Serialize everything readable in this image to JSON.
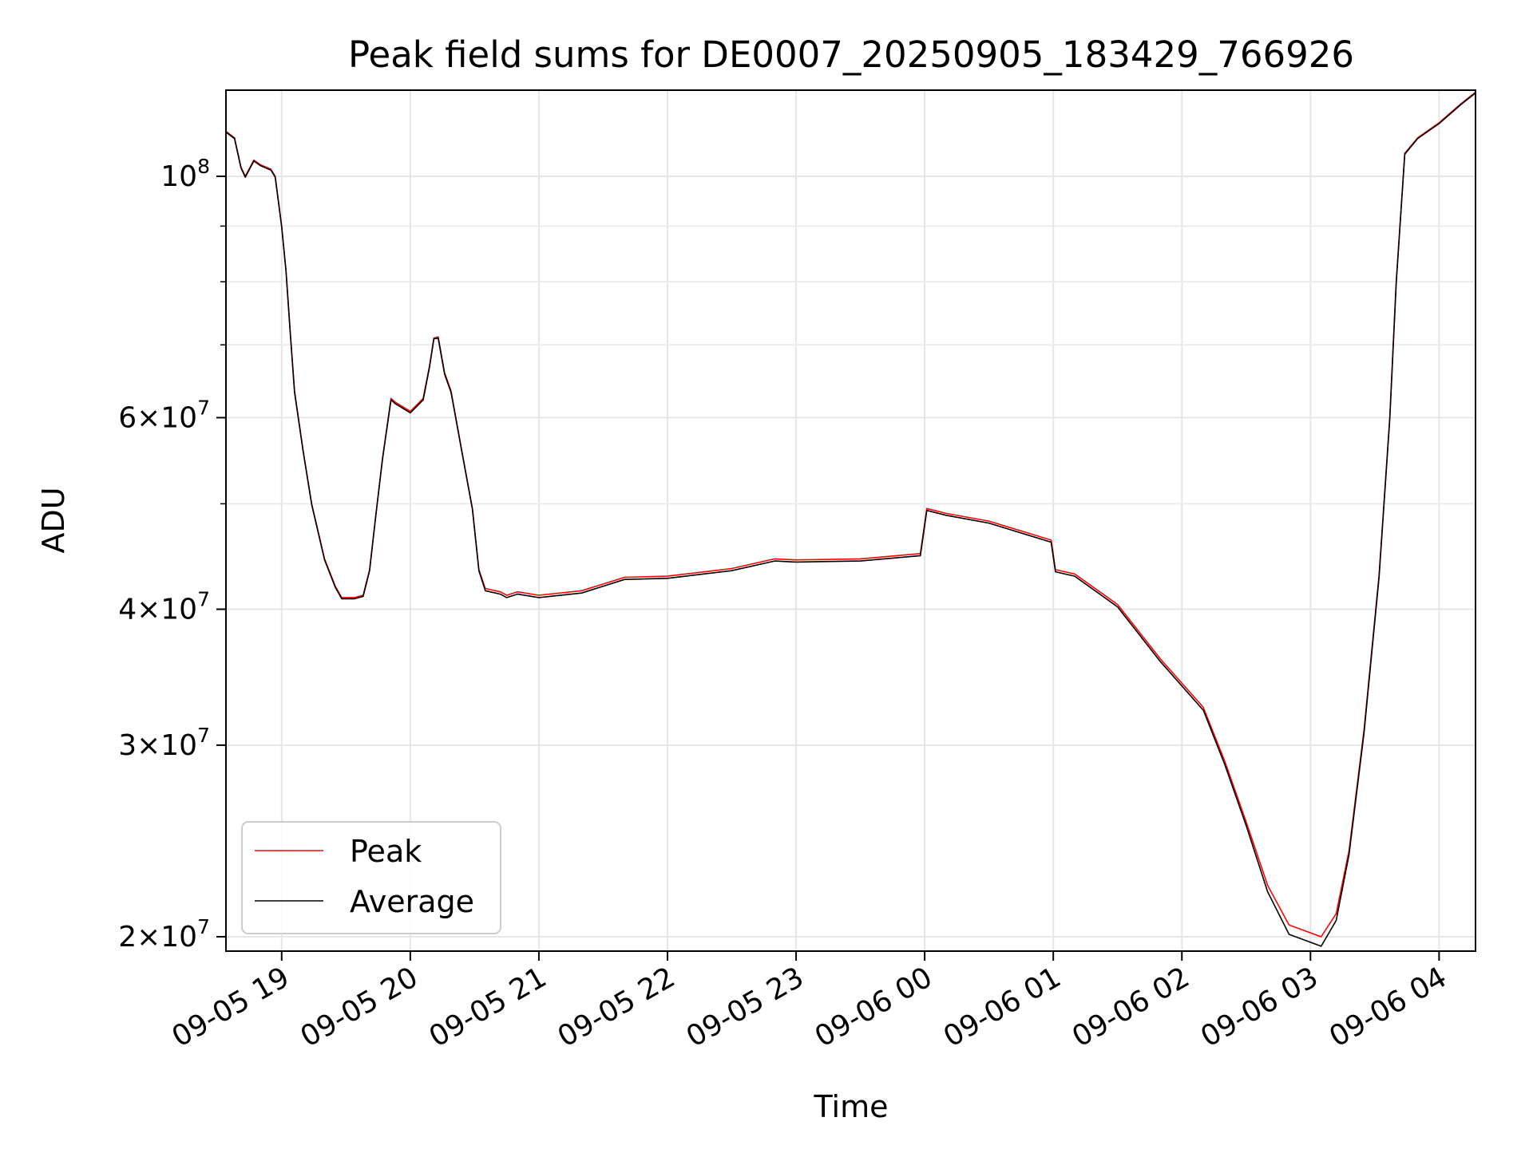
{
  "chart_data": {
    "type": "line",
    "title": "Peak field sums for DE0007_20250905_183429_766926",
    "xlabel": "Time",
    "ylabel": "ADU",
    "y_scale": "log",
    "ylim": [
      19400000,
      120000000
    ],
    "xlim": [
      "2025-09-05 18:34",
      "2025-09-06 04:17"
    ],
    "grid": true,
    "legend_position": "lower-left",
    "x_ticks": [
      {
        "t": "2025-09-05 19:00",
        "label": "09-05 19"
      },
      {
        "t": "2025-09-05 20:00",
        "label": "09-05 20"
      },
      {
        "t": "2025-09-05 21:00",
        "label": "09-05 21"
      },
      {
        "t": "2025-09-05 22:00",
        "label": "09-05 22"
      },
      {
        "t": "2025-09-05 23:00",
        "label": "09-05 23"
      },
      {
        "t": "2025-09-06 00:00",
        "label": "09-06 00"
      },
      {
        "t": "2025-09-06 01:00",
        "label": "09-06 01"
      },
      {
        "t": "2025-09-06 02:00",
        "label": "09-06 02"
      },
      {
        "t": "2025-09-06 03:00",
        "label": "09-06 03"
      },
      {
        "t": "2025-09-06 04:00",
        "label": "09-06 04"
      }
    ],
    "y_ticks": [
      {
        "value": 20000000,
        "mant": "2×10",
        "exp": "7"
      },
      {
        "value": 30000000,
        "mant": "3×10",
        "exp": "7"
      },
      {
        "value": 40000000,
        "mant": "4×10",
        "exp": "7"
      },
      {
        "value": 60000000,
        "mant": "6×10",
        "exp": "7"
      },
      {
        "value": 100000000,
        "mant": "10",
        "exp": "8"
      }
    ],
    "y_minor_ticks": [
      50000000,
      70000000,
      80000000,
      90000000
    ],
    "series": [
      {
        "name": "Peak",
        "color": "#ff0000",
        "points": [
          [
            "2025-09-05 18:34",
            110000000
          ],
          [
            "2025-09-05 18:38",
            108500000
          ],
          [
            "2025-09-05 18:41",
            102000000
          ],
          [
            "2025-09-05 18:43",
            100000000
          ],
          [
            "2025-09-05 18:47",
            103500000
          ],
          [
            "2025-09-05 18:50",
            102500000
          ],
          [
            "2025-09-05 18:55",
            101500000
          ],
          [
            "2025-09-05 18:57",
            100000000
          ],
          [
            "2025-09-05 19:00",
            90000000
          ],
          [
            "2025-09-05 19:02",
            82000000
          ],
          [
            "2025-09-05 19:04",
            72000000
          ],
          [
            "2025-09-05 19:06",
            63500000
          ],
          [
            "2025-09-05 19:10",
            56000000
          ],
          [
            "2025-09-05 19:14",
            50000000
          ],
          [
            "2025-09-05 19:20",
            44500000
          ],
          [
            "2025-09-05 19:25",
            42000000
          ],
          [
            "2025-09-05 19:28",
            41000000
          ],
          [
            "2025-09-05 19:34",
            41000000
          ],
          [
            "2025-09-05 19:38",
            41200000
          ],
          [
            "2025-09-05 19:41",
            43500000
          ],
          [
            "2025-09-05 19:44",
            49000000
          ],
          [
            "2025-09-05 19:47",
            55000000
          ],
          [
            "2025-09-05 19:51",
            62500000
          ],
          [
            "2025-09-05 19:53",
            62000000
          ],
          [
            "2025-09-05 20:00",
            60800000
          ],
          [
            "2025-09-05 20:06",
            62500000
          ],
          [
            "2025-09-05 20:09",
            67000000
          ],
          [
            "2025-09-05 20:11",
            71000000
          ],
          [
            "2025-09-05 20:13",
            71200000
          ],
          [
            "2025-09-05 20:16",
            66000000
          ],
          [
            "2025-09-05 20:19",
            63500000
          ],
          [
            "2025-09-05 20:24",
            56000000
          ],
          [
            "2025-09-05 20:29",
            49500000
          ],
          [
            "2025-09-05 20:32",
            43500000
          ],
          [
            "2025-09-05 20:35",
            41800000
          ],
          [
            "2025-09-05 20:42",
            41500000
          ],
          [
            "2025-09-05 20:45",
            41200000
          ],
          [
            "2025-09-05 20:50",
            41500000
          ],
          [
            "2025-09-05 21:00",
            41200000
          ],
          [
            "2025-09-05 21:20",
            41600000
          ],
          [
            "2025-09-05 21:40",
            42800000
          ],
          [
            "2025-09-05 22:00",
            42900000
          ],
          [
            "2025-09-05 22:30",
            43600000
          ],
          [
            "2025-09-05 22:50",
            44500000
          ],
          [
            "2025-09-05 23:00",
            44400000
          ],
          [
            "2025-09-05 23:30",
            44500000
          ],
          [
            "2025-09-05 23:58",
            45000000
          ],
          [
            "2025-09-06 00:01",
            49500000
          ],
          [
            "2025-09-06 00:10",
            49000000
          ],
          [
            "2025-09-06 00:30",
            48200000
          ],
          [
            "2025-09-06 00:59",
            46300000
          ],
          [
            "2025-09-06 01:01",
            43500000
          ],
          [
            "2025-09-06 01:10",
            43100000
          ],
          [
            "2025-09-06 01:30",
            40400000
          ],
          [
            "2025-09-06 01:50",
            36000000
          ],
          [
            "2025-09-06 02:10",
            32500000
          ],
          [
            "2025-09-06 02:20",
            29000000
          ],
          [
            "2025-09-06 02:30",
            25500000
          ],
          [
            "2025-09-06 02:40",
            22300000
          ],
          [
            "2025-09-06 02:50",
            20500000
          ],
          [
            "2025-09-06 03:05",
            20000000
          ],
          [
            "2025-09-06 03:12",
            21000000
          ],
          [
            "2025-09-06 03:18",
            24000000
          ],
          [
            "2025-09-06 03:25",
            31000000
          ],
          [
            "2025-09-06 03:32",
            43000000
          ],
          [
            "2025-09-06 03:37",
            60000000
          ],
          [
            "2025-09-06 03:40",
            80000000
          ],
          [
            "2025-09-06 03:44",
            105000000
          ],
          [
            "2025-09-06 03:50",
            108500000
          ],
          [
            "2025-09-06 04:00",
            112000000
          ],
          [
            "2025-09-06 04:10",
            116500000
          ],
          [
            "2025-09-06 04:17",
            119500000
          ]
        ]
      },
      {
        "name": "Average",
        "color": "#000000",
        "points": [
          [
            "2025-09-05 18:34",
            109800000
          ],
          [
            "2025-09-05 18:38",
            108300000
          ],
          [
            "2025-09-05 18:41",
            101800000
          ],
          [
            "2025-09-05 18:43",
            99800000
          ],
          [
            "2025-09-05 18:47",
            103300000
          ],
          [
            "2025-09-05 18:50",
            102300000
          ],
          [
            "2025-09-05 18:55",
            101300000
          ],
          [
            "2025-09-05 18:57",
            99800000
          ],
          [
            "2025-09-05 19:00",
            89800000
          ],
          [
            "2025-09-05 19:02",
            81800000
          ],
          [
            "2025-09-05 19:04",
            71800000
          ],
          [
            "2025-09-05 19:06",
            63300000
          ],
          [
            "2025-09-05 19:10",
            55900000
          ],
          [
            "2025-09-05 19:14",
            49900000
          ],
          [
            "2025-09-05 19:20",
            44400000
          ],
          [
            "2025-09-05 19:25",
            41900000
          ],
          [
            "2025-09-05 19:28",
            40900000
          ],
          [
            "2025-09-05 19:34",
            40900000
          ],
          [
            "2025-09-05 19:38",
            41100000
          ],
          [
            "2025-09-05 19:41",
            43400000
          ],
          [
            "2025-09-05 19:44",
            48900000
          ],
          [
            "2025-09-05 19:47",
            54900000
          ],
          [
            "2025-09-05 19:51",
            62300000
          ],
          [
            "2025-09-05 19:53",
            61800000
          ],
          [
            "2025-09-05 20:00",
            60600000
          ],
          [
            "2025-09-05 20:06",
            62300000
          ],
          [
            "2025-09-05 20:09",
            66800000
          ],
          [
            "2025-09-05 20:11",
            70900000
          ],
          [
            "2025-09-05 20:13",
            71000000
          ],
          [
            "2025-09-05 20:16",
            65800000
          ],
          [
            "2025-09-05 20:19",
            63300000
          ],
          [
            "2025-09-05 20:24",
            55900000
          ],
          [
            "2025-09-05 20:29",
            49400000
          ],
          [
            "2025-09-05 20:32",
            43400000
          ],
          [
            "2025-09-05 20:35",
            41600000
          ],
          [
            "2025-09-05 20:42",
            41300000
          ],
          [
            "2025-09-05 20:45",
            41000000
          ],
          [
            "2025-09-05 20:50",
            41300000
          ],
          [
            "2025-09-05 21:00",
            41000000
          ],
          [
            "2025-09-05 21:20",
            41400000
          ],
          [
            "2025-09-05 21:40",
            42600000
          ],
          [
            "2025-09-05 22:00",
            42700000
          ],
          [
            "2025-09-05 22:30",
            43400000
          ],
          [
            "2025-09-05 22:50",
            44300000
          ],
          [
            "2025-09-05 23:00",
            44200000
          ],
          [
            "2025-09-05 23:30",
            44300000
          ],
          [
            "2025-09-05 23:58",
            44800000
          ],
          [
            "2025-09-06 00:01",
            49300000
          ],
          [
            "2025-09-06 00:10",
            48800000
          ],
          [
            "2025-09-06 00:30",
            48000000
          ],
          [
            "2025-09-06 00:59",
            46100000
          ],
          [
            "2025-09-06 01:01",
            43300000
          ],
          [
            "2025-09-06 01:10",
            42900000
          ],
          [
            "2025-09-06 01:30",
            40200000
          ],
          [
            "2025-09-06 01:50",
            35800000
          ],
          [
            "2025-09-06 02:10",
            32300000
          ],
          [
            "2025-09-06 02:20",
            28800000
          ],
          [
            "2025-09-06 02:30",
            25300000
          ],
          [
            "2025-09-06 02:40",
            22000000
          ],
          [
            "2025-09-06 02:50",
            20100000
          ],
          [
            "2025-09-06 03:05",
            19600000
          ],
          [
            "2025-09-06 03:12",
            20700000
          ],
          [
            "2025-09-06 03:18",
            23800000
          ],
          [
            "2025-09-06 03:25",
            30800000
          ],
          [
            "2025-09-06 03:32",
            42800000
          ],
          [
            "2025-09-06 03:37",
            59800000
          ],
          [
            "2025-09-06 03:40",
            79800000
          ],
          [
            "2025-09-06 03:44",
            104800000
          ],
          [
            "2025-09-06 03:50",
            108300000
          ],
          [
            "2025-09-06 04:00",
            111800000
          ],
          [
            "2025-09-06 04:10",
            116300000
          ],
          [
            "2025-09-06 04:17",
            119300000
          ]
        ]
      }
    ]
  }
}
